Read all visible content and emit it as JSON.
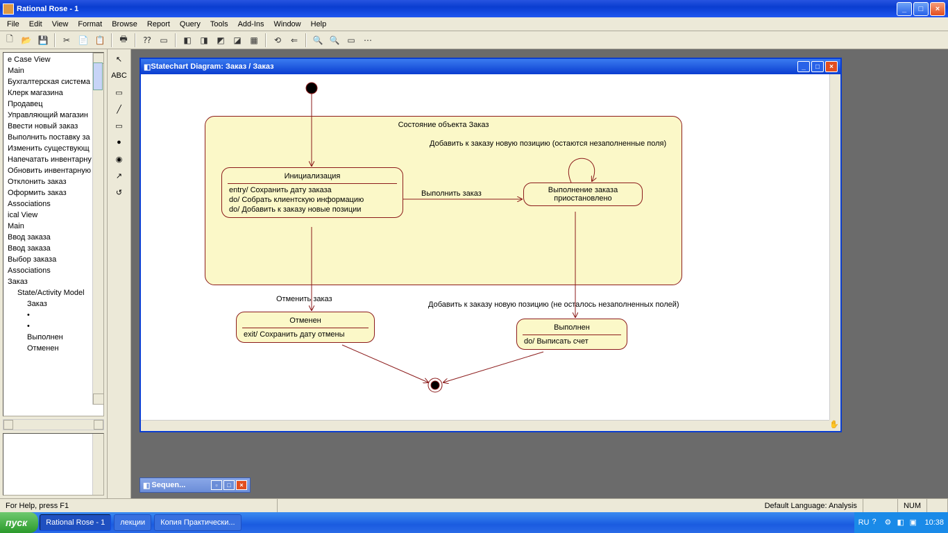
{
  "window": {
    "title": "Rational Rose  - 1"
  },
  "menu": [
    "File",
    "Edit",
    "View",
    "Format",
    "Browse",
    "Report",
    "Query",
    "Tools",
    "Add-Ins",
    "Window",
    "Help"
  ],
  "tree": [
    {
      "t": "e Case View",
      "l": 0
    },
    {
      "t": "Main",
      "l": 0
    },
    {
      "t": "Бухгалтерская система",
      "l": 0
    },
    {
      "t": "Клерк магазина",
      "l": 0
    },
    {
      "t": "Продавец",
      "l": 0
    },
    {
      "t": "Управляющий магазин",
      "l": 0
    },
    {
      "t": "Ввести новый заказ",
      "l": 0
    },
    {
      "t": "Выполнить поставку за",
      "l": 0
    },
    {
      "t": "Изменить существующ",
      "l": 0
    },
    {
      "t": "Напечатать инвентарну",
      "l": 0
    },
    {
      "t": "Обновить инвентарную",
      "l": 0
    },
    {
      "t": "Отклонить заказ",
      "l": 0
    },
    {
      "t": "Оформить заказ",
      "l": 0
    },
    {
      "t": "Associations",
      "l": 0
    },
    {
      "t": "ical View",
      "l": 0
    },
    {
      "t": "Main",
      "l": 0
    },
    {
      "t": "Ввод заказа",
      "l": 0
    },
    {
      "t": "Ввод заказа",
      "l": 0
    },
    {
      "t": "Выбор заказа",
      "l": 0
    },
    {
      "t": "Associations",
      "l": 0
    },
    {
      "t": "Заказ",
      "l": 0
    },
    {
      "t": "State/Activity Model",
      "l": 1
    },
    {
      "t": "Заказ",
      "l": 2
    },
    {
      "t": "•",
      "l": 2
    },
    {
      "t": "•",
      "l": 2
    },
    {
      "t": "Выполнен",
      "l": 2
    },
    {
      "t": "Отменен",
      "l": 2
    }
  ],
  "inner": {
    "title": "Statechart Diagram: Заказ / Заказ"
  },
  "diagram": {
    "containerLabel": "Состояние объекта Заказ",
    "initState": {
      "name": "Инициализация",
      "actions": [
        "entry/ Сохранить дату заказа",
        "do/ Собрать клиентскую информацию",
        "do/ Добавить к заказу новые позиции"
      ]
    },
    "suspState": {
      "name1": "Выполнение заказа",
      "name2": "приостановлено"
    },
    "cancelState": {
      "name": "Отменен",
      "action": "exit/ Сохранить дату отмены"
    },
    "doneState": {
      "name": "Выполнен",
      "action": "do/ Выписать счет"
    },
    "t_exec": "Выполнить заказ",
    "t_add_remain": "Добавить к заказу новую позицию (остаются незаполненные поля)",
    "t_cancel": "Отменить заказ",
    "t_add_done": "Добавить к заказу новую позицию (не осталось незаполненных полей)"
  },
  "minWin": "Sequen...",
  "status": {
    "help": "For Help, press F1",
    "lang": "Default Language: Analysis",
    "num": "NUM"
  },
  "taskbar": {
    "start": "пуск",
    "tasks": [
      "Rational Rose - 1",
      "лекции",
      "Копия Практически..."
    ],
    "lang": "RU",
    "clock": "10:38"
  }
}
